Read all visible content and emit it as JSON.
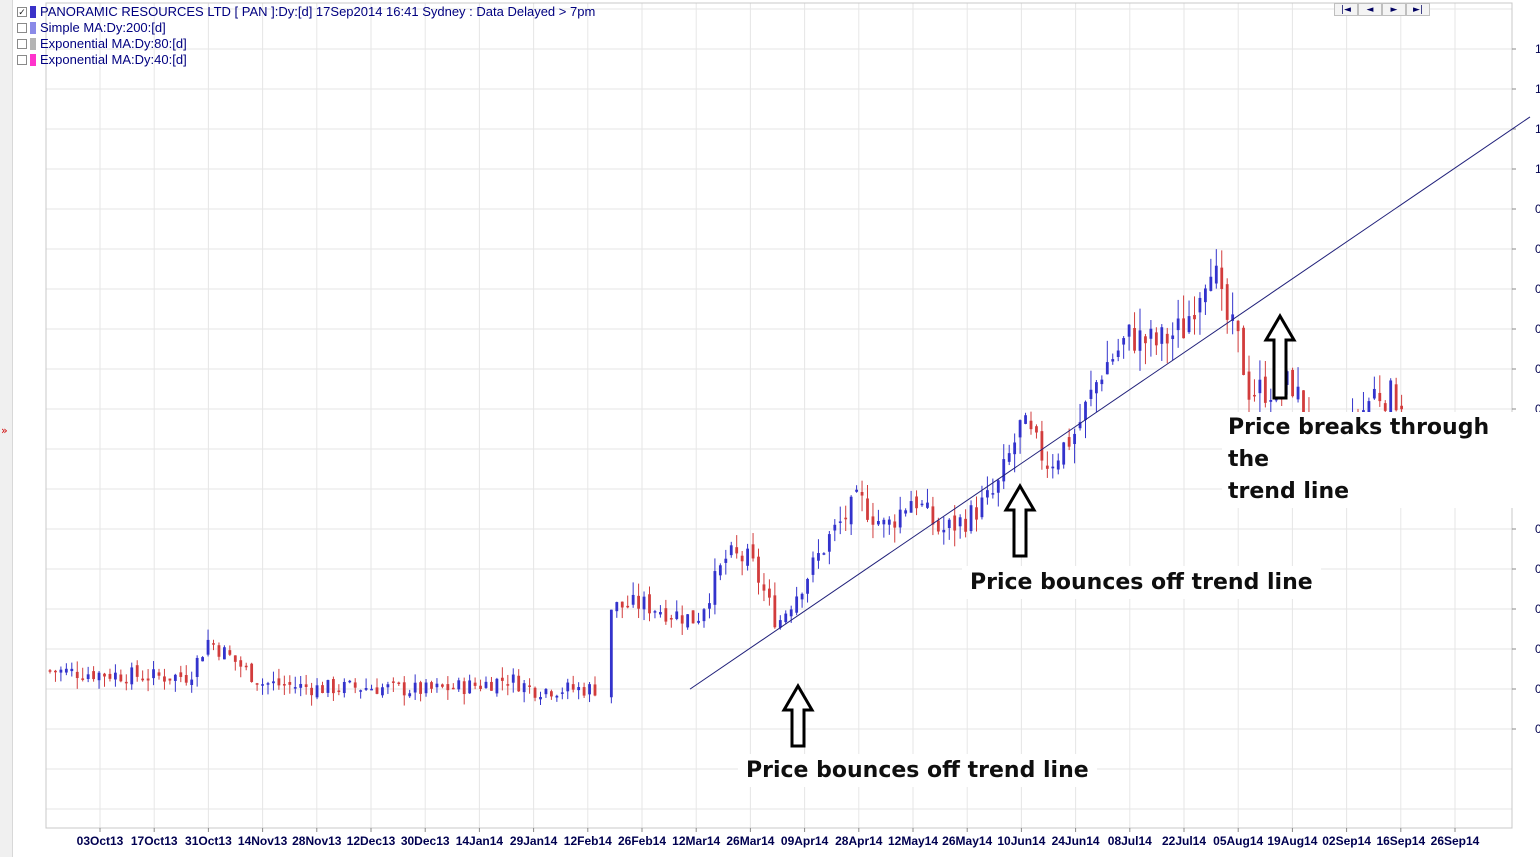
{
  "window": {
    "title": "PANORAMIC RESOURCES LTD [ PAN ]:Dy:[d]  17Sep2014 16:41  Sydney : Data Delayed > 7pm"
  },
  "legend": [
    {
      "label": "PANORAMIC RESOURCES LTD [ PAN ]:Dy:[d]  17Sep2014 16:41  Sydney : Data Delayed > 7pm",
      "checked": true,
      "color": "#3a32c8"
    },
    {
      "label": "Simple MA:Dy:200:[d]",
      "checked": false,
      "color": "#8a8ae8"
    },
    {
      "label": "Exponential MA:Dy:80:[d]",
      "checked": false,
      "color": "#b4b4b4"
    },
    {
      "label": "Exponential MA:Dy:40:[d]",
      "checked": false,
      "color": "#ff33cc"
    }
  ],
  "nav": [
    {
      "name": "first-page-icon",
      "glyph": "|◄"
    },
    {
      "name": "prev-icon",
      "glyph": "◄"
    },
    {
      "name": "next-icon",
      "glyph": "►"
    },
    {
      "name": "last-page-icon",
      "glyph": "►|"
    }
  ],
  "side_marker": "»",
  "annotations": [
    {
      "text": "Price breaks through the\ntrend line"
    },
    {
      "text": "Price bounces off trend line"
    },
    {
      "text": "Price bounces off trend line"
    }
  ],
  "colors": {
    "up": "#3333cc",
    "down": "#d23c3c",
    "trendline": "#20207a",
    "grid": "#e6e6e6",
    "axis_text": "#000050"
  },
  "chart_data": {
    "type": "candlestick",
    "title": "PANORAMIC RESOURCES LTD [ PAN ]:Dy:[d]  17Sep2014 16:41  Sydney : Data Delayed > 7pm",
    "x_ticks": [
      "03Oct13",
      "17Oct13",
      "31Oct13",
      "14Nov13",
      "28Nov13",
      "12Dec13",
      "30Dec13",
      "14Jan14",
      "29Jan14",
      "12Feb14",
      "26Feb14",
      "12Mar14",
      "26Mar14",
      "09Apr14",
      "28Apr14",
      "12May14",
      "26May14",
      "10Jun14",
      "24Jun14",
      "08Jul14",
      "22Jul14",
      "05Aug14",
      "19Aug14",
      "02Sep14",
      "16Sep14",
      "26Sep14"
    ],
    "y_tick_labels": [
      "1",
      "1",
      "1",
      "1",
      "0",
      "0",
      "0",
      "0",
      "0",
      "0",
      "0",
      "0",
      "0",
      "0",
      "0",
      "0",
      "0",
      "0"
    ],
    "series_close_anchors": [
      {
        "x": "03Oct13",
        "close": 0.168
      },
      {
        "x": "17Oct13",
        "close": 0.164
      },
      {
        "x": "26Oct13",
        "close": 0.165
      },
      {
        "x": "31Oct13",
        "close": 0.21
      },
      {
        "x": "14Nov13",
        "close": 0.156
      },
      {
        "x": "28Nov13",
        "close": 0.15
      },
      {
        "x": "12Dec13",
        "close": 0.151
      },
      {
        "x": "30Dec13",
        "close": 0.147
      },
      {
        "x": "14Jan14",
        "close": 0.154
      },
      {
        "x": "22Jan14",
        "close": 0.162
      },
      {
        "x": "29Jan14",
        "close": 0.148
      },
      {
        "x": "14Feb14",
        "close": 0.149
      },
      {
        "x": "17Feb14",
        "close": 0.25
      },
      {
        "x": "26Feb14",
        "close": 0.255
      },
      {
        "x": "12Mar14",
        "close": 0.235
      },
      {
        "x": "20Mar14",
        "close": 0.315
      },
      {
        "x": "26Mar14",
        "close": 0.31
      },
      {
        "x": "02Apr14",
        "close": 0.23
      },
      {
        "x": "09Apr14",
        "close": 0.285
      },
      {
        "x": "18Apr14",
        "close": 0.34
      },
      {
        "x": "28Apr14",
        "close": 0.385
      },
      {
        "x": "05May14",
        "close": 0.35
      },
      {
        "x": "12May14",
        "close": 0.39
      },
      {
        "x": "19May14",
        "close": 0.345
      },
      {
        "x": "26May14",
        "close": 0.362
      },
      {
        "x": "03Jun14",
        "close": 0.395
      },
      {
        "x": "10Jun14",
        "close": 0.48
      },
      {
        "x": "17Jun14",
        "close": 0.43
      },
      {
        "x": "24Jun14",
        "close": 0.47
      },
      {
        "x": "01Jul14",
        "close": 0.55
      },
      {
        "x": "08Jul14",
        "close": 0.59
      },
      {
        "x": "15Jul14",
        "close": 0.58
      },
      {
        "x": "22Jul14",
        "close": 0.6
      },
      {
        "x": "29Jul14",
        "close": 0.69
      },
      {
        "x": "01Aug14",
        "close": 0.62
      },
      {
        "x": "05Aug14",
        "close": 0.58
      },
      {
        "x": "08Aug14",
        "close": 0.52
      },
      {
        "x": "19Aug14",
        "close": 0.53
      },
      {
        "x": "26Aug14",
        "close": 0.45
      },
      {
        "x": "02Sep14",
        "close": 0.46
      },
      {
        "x": "09Sep14",
        "close": 0.52
      },
      {
        "x": "17Sep14",
        "close": 0.51
      }
    ],
    "trendline": {
      "from": {
        "x": "26Mar14",
        "price": 0.2
      },
      "to": {
        "x": "26Sep14",
        "price": 0.8
      }
    },
    "grid": true,
    "legend_position": "top-left"
  }
}
